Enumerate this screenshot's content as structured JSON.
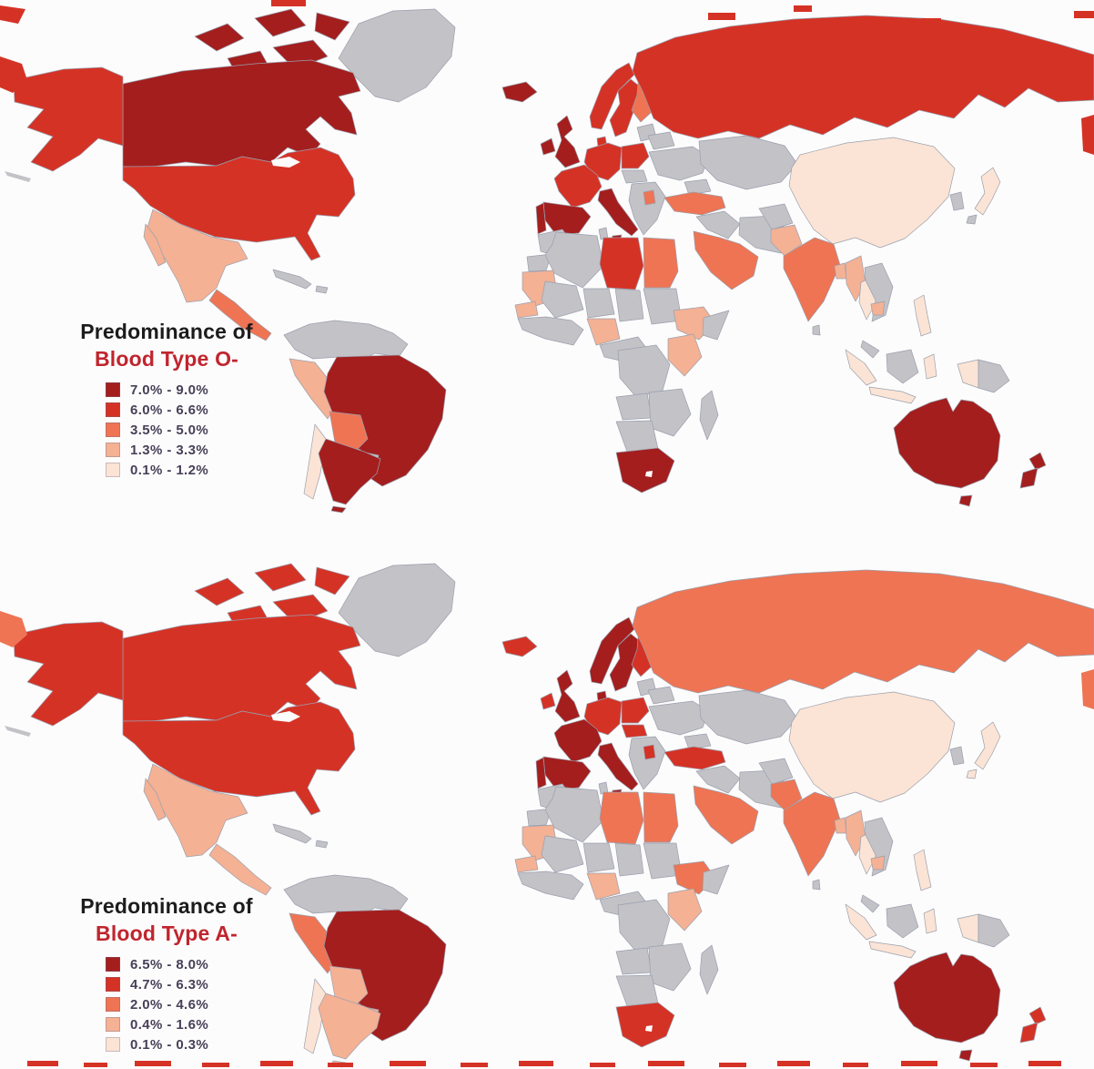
{
  "colors": {
    "no_data": "#c3c2c7",
    "border": "#9aa0ae",
    "ocean": "#fdfcfc",
    "title_dark": "#1c1c1c",
    "title_accent": "#c0252e",
    "legend_text": "#474058"
  },
  "maps": [
    {
      "title_line1": "Predominance of",
      "title_line2": "Blood Type O-",
      "legend": [
        {
          "label": "7.0% - 9.0%",
          "color": "#a41e1e"
        },
        {
          "label": "6.0% - 6.6%",
          "color": "#d53226"
        },
        {
          "label": "3.5% - 5.0%",
          "color": "#ee7454"
        },
        {
          "label": "1.3% - 3.3%",
          "color": "#f4b194"
        },
        {
          "label": "0.1% - 1.2%",
          "color": "#fbe4d5"
        }
      ],
      "regions": {
        "greenland": 0,
        "arctic1": 1,
        "arctic2": 1,
        "arctic3": 1,
        "arctic4": 1,
        "arctic5": 1,
        "canada": 1,
        "alaska": 2,
        "aleutians": 0,
        "usa": 2,
        "lakes": -1,
        "mexico": 4,
        "baja": 4,
        "camerica": 3,
        "cuba": 0,
        "hispaniola": 0,
        "northsa": 0,
        "peru": 4,
        "brazil": 1,
        "bolivia": 3,
        "paraguay": 0,
        "chile": 5,
        "argentina": 1,
        "tdf": 1,
        "iceland": 1,
        "ireland": 1,
        "uk": 1,
        "norway": 2,
        "sweden": 2,
        "finland": 3,
        "baltics": 0,
        "denmark": 2,
        "germany": 2,
        "france": 2,
        "spain": 1,
        "portugal": 1,
        "italy": 1,
        "sicily": 1,
        "poland": 2,
        "czech": 0,
        "balkans": 0,
        "serbia": 3,
        "ukraine": 0,
        "belarus": 0,
        "russia": 2,
        "centralasia": 0,
        "caucasus": 0,
        "turkey": 3,
        "iraq": 0,
        "iran": 0,
        "saudi": 3,
        "morocco": 0,
        "wsahara": 0,
        "algeria": 0,
        "tunisia": 0,
        "libya": 2,
        "egypt": 3,
        "mauritania": 4,
        "senegal": 4,
        "mali": 0,
        "niger": 0,
        "chad": 0,
        "sudan": 0,
        "wafrica": 0,
        "nigeria": 4,
        "cafrica": 0,
        "ethiopia": 4,
        "somalia": 0,
        "kenya": 4,
        "drc": 0,
        "angola": 0,
        "zambia": 0,
        "namibia": 0,
        "southafrica": 1,
        "lesotho": -1,
        "madagascar": 0,
        "china": 5,
        "afghanistan": 0,
        "pakistan": 4,
        "india": 3,
        "srilanka": 0,
        "bangladesh": 4,
        "myanmar": 4,
        "thailand": 5,
        "indochina": 0,
        "cambodia": 4,
        "malaysia": 0,
        "korea": 0,
        "japan": 5,
        "japan2": 0,
        "philippines": 5,
        "sumatra": 5,
        "java": 5,
        "borneo": 0,
        "sulawesi": 5,
        "wpng": 5,
        "png": 0,
        "australia": 1,
        "tasmania": 1,
        "nznorth": 1,
        "nzsouth": 1,
        "wrapleft1": 2,
        "wrapleft2": 2,
        "wrapright": 2,
        "topdashes": 2
      }
    },
    {
      "title_line1": "Predominance of",
      "title_line2": "Blood Type A-",
      "legend": [
        {
          "label": "6.5% - 8.0%",
          "color": "#a41e1e"
        },
        {
          "label": "4.7% - 6.3%",
          "color": "#d53226"
        },
        {
          "label": "2.0% - 4.6%",
          "color": "#ee7454"
        },
        {
          "label": "0.4% - 1.6%",
          "color": "#f4b194"
        },
        {
          "label": "0.1% - 0.3%",
          "color": "#fbe4d5"
        }
      ],
      "regions": {
        "greenland": 0,
        "arctic1": 2,
        "arctic2": 2,
        "arctic3": 2,
        "arctic4": 2,
        "arctic5": 2,
        "canada": 2,
        "alaska": 2,
        "aleutians": 0,
        "usa": 2,
        "lakes": -1,
        "mexico": 4,
        "baja": 4,
        "camerica": 4,
        "cuba": 0,
        "hispaniola": 0,
        "northsa": 0,
        "peru": 3,
        "brazil": 1,
        "bolivia": 4,
        "paraguay": 4,
        "chile": 5,
        "argentina": 4,
        "tdf": 4,
        "iceland": 2,
        "ireland": 2,
        "uk": 1,
        "norway": 1,
        "sweden": 1,
        "finland": 2,
        "baltics": 0,
        "denmark": 1,
        "germany": 2,
        "france": 1,
        "spain": 1,
        "portugal": 1,
        "italy": 1,
        "sicily": 1,
        "poland": 2,
        "czech": 2,
        "balkans": 0,
        "serbia": 2,
        "ukraine": 0,
        "belarus": 0,
        "russia": 3,
        "centralasia": 0,
        "caucasus": 0,
        "turkey": 2,
        "iraq": 0,
        "iran": 0,
        "saudi": 3,
        "morocco": 0,
        "wsahara": 0,
        "algeria": 0,
        "tunisia": 0,
        "libya": 3,
        "egypt": 3,
        "mauritania": 4,
        "senegal": 4,
        "mali": 0,
        "niger": 0,
        "chad": 0,
        "sudan": 0,
        "wafrica": 0,
        "nigeria": 4,
        "cafrica": 0,
        "ethiopia": 3,
        "somalia": 0,
        "kenya": 4,
        "drc": 0,
        "angola": 0,
        "zambia": 0,
        "namibia": 0,
        "southafrica": 2,
        "lesotho": -1,
        "madagascar": 0,
        "china": 5,
        "afghanistan": 0,
        "pakistan": 3,
        "india": 3,
        "srilanka": 0,
        "bangladesh": 4,
        "myanmar": 4,
        "thailand": 5,
        "indochina": 0,
        "cambodia": 4,
        "malaysia": 0,
        "korea": 0,
        "japan": 5,
        "japan2": 5,
        "philippines": 5,
        "sumatra": 5,
        "java": 5,
        "borneo": 0,
        "sulawesi": 5,
        "wpng": 5,
        "png": 0,
        "australia": 1,
        "tasmania": 1,
        "nznorth": 2,
        "nzsouth": 2,
        "wrapleft2": 3,
        "wrapright": 3,
        "bottomdashes": 2
      }
    }
  ]
}
